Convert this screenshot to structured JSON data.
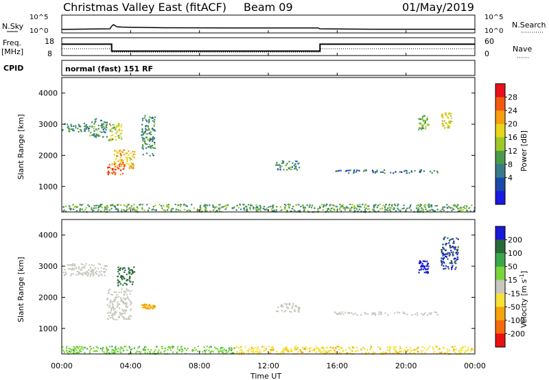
{
  "header": {
    "station": "Christmas Valley East (fitACF)",
    "beam": "Beam 09",
    "date": "01/May/2019"
  },
  "panels": {
    "nsky_label": "N.Sky",
    "nsky_ticks": [
      "10^5",
      "10^0"
    ],
    "nsearch_label": "N.Search",
    "nsearch_ticks": [
      "10^5",
      "10^0"
    ],
    "freq_label_1": "Freq.",
    "freq_label_2": "[MHz]",
    "freq_ticks": [
      "18",
      "8"
    ],
    "nave_label": "Nave",
    "nave_ticks": [
      "60",
      "0"
    ],
    "cpid_label": "CPID",
    "cpid_value": "normal (fast) 151 RF"
  },
  "axes": {
    "xlabel": "Time UT",
    "ylabel": "Slant Range [km]",
    "x_ticks": [
      "00:00",
      "04:00",
      "08:00",
      "12:00",
      "16:00",
      "20:00",
      "00:00"
    ],
    "y_ticks": [
      "1000",
      "2000",
      "3000",
      "4000"
    ]
  },
  "colorbars": {
    "power": {
      "label": "Power [dB]",
      "ticks": [
        "28",
        "24",
        "20",
        "16",
        "12",
        "8",
        "4"
      ],
      "colors": [
        "#e8101a",
        "#f25a10",
        "#f79d10",
        "#e8d61a",
        "#9dca2a",
        "#4a9a4a",
        "#3a7a8a",
        "#1a4aa8",
        "#1a1ae0"
      ]
    },
    "velocity": {
      "label_main": "Velocity [m s",
      "label_sup": "-1",
      "label_end": "]",
      "ticks": [
        "200",
        "100",
        "50",
        "15",
        "-15",
        "-50",
        "-100",
        "-200"
      ],
      "colors": [
        "#1a1ad8",
        "#2a6a3a",
        "#3aa84a",
        "#7ad43a",
        "#c8c8c0",
        "#f5e23a",
        "#f5a50a",
        "#f56a0a",
        "#e81010"
      ]
    }
  },
  "chart_data": [
    {
      "type": "line",
      "title": "Christmas Valley East (fitACF)",
      "ylabel": "N.Sky",
      "x_range_hours": [
        0,
        24
      ],
      "y_scale": "log",
      "series": [
        {
          "x": [
            0,
            2.8,
            2.9,
            3.0,
            3.2,
            3.5,
            4.0,
            6.0,
            10.0,
            14.9,
            15.0,
            18.0,
            24.0
          ],
          "y": [
            5,
            8,
            60,
            200,
            40,
            30,
            25,
            18,
            15,
            15,
            8,
            6,
            6
          ]
        }
      ]
    },
    {
      "type": "line",
      "ylabel": "Freq. [MHz]",
      "x_range_hours": [
        0,
        24
      ],
      "ylim": [
        8,
        18
      ],
      "series": [
        {
          "x": [
            0,
            2.9,
            2.9,
            15.0,
            15.0,
            24.0
          ],
          "y": [
            14.5,
            14.5,
            10.3,
            10.3,
            14.5,
            14.5
          ]
        }
      ]
    },
    {
      "type": "heatmap",
      "ylabel": "Slant Range [km]",
      "xlabel": "Time UT",
      "ylim": [
        180,
        4500
      ],
      "colorbar": "Power [dB]",
      "echo_regions": [
        {
          "t": [
            0.0,
            1.6
          ],
          "r": [
            2750,
            3050
          ],
          "value": 8
        },
        {
          "t": [
            1.6,
            2.6
          ],
          "r": [
            2600,
            3200
          ],
          "value": 8
        },
        {
          "t": [
            2.6,
            3.6
          ],
          "r": [
            1400,
            1800
          ],
          "value": 26
        },
        {
          "t": [
            3.0,
            4.2
          ],
          "r": [
            1600,
            2200
          ],
          "value": 20
        },
        {
          "t": [
            2.7,
            3.5
          ],
          "r": [
            2500,
            3100
          ],
          "value": 16
        },
        {
          "t": [
            4.6,
            5.4
          ],
          "r": [
            2000,
            3300
          ],
          "value": 8
        },
        {
          "t": [
            12.4,
            13.8
          ],
          "r": [
            1550,
            1850
          ],
          "value": 8
        },
        {
          "t": [
            15.8,
            21.8
          ],
          "r": [
            1450,
            1550
          ],
          "value": 6
        },
        {
          "t": [
            20.7,
            21.3
          ],
          "r": [
            2850,
            3300
          ],
          "value": 12
        },
        {
          "t": [
            22.0,
            22.6
          ],
          "r": [
            2900,
            3400
          ],
          "value": 18
        },
        {
          "t": [
            0.0,
            24.0
          ],
          "r": [
            200,
            450
          ],
          "value": 10
        }
      ]
    },
    {
      "type": "heatmap",
      "ylabel": "Slant Range [km]",
      "xlabel": "Time UT",
      "ylim": [
        180,
        4500
      ],
      "colorbar": "Velocity [m s-1]",
      "echo_regions": [
        {
          "t": [
            0.0,
            2.6
          ],
          "r": [
            2700,
            3100
          ],
          "value": 0
        },
        {
          "t": [
            2.6,
            4.0
          ],
          "r": [
            1300,
            2300
          ],
          "value": 0
        },
        {
          "t": [
            3.2,
            4.2
          ],
          "r": [
            2400,
            3000
          ],
          "value": 180
        },
        {
          "t": [
            4.6,
            5.4
          ],
          "r": [
            1650,
            1800
          ],
          "value": -60
        },
        {
          "t": [
            12.4,
            13.8
          ],
          "r": [
            1550,
            1850
          ],
          "value": 0
        },
        {
          "t": [
            15.8,
            21.8
          ],
          "r": [
            1450,
            1550
          ],
          "value": 0
        },
        {
          "t": [
            20.7,
            21.3
          ],
          "r": [
            2800,
            3200
          ],
          "value": 220
        },
        {
          "t": [
            22.0,
            23.0
          ],
          "r": [
            2900,
            4000
          ],
          "value": 200
        },
        {
          "t": [
            0.0,
            10.0
          ],
          "r": [
            200,
            450
          ],
          "value": 40
        },
        {
          "t": [
            10.0,
            24.0
          ],
          "r": [
            200,
            450
          ],
          "value": -40
        }
      ]
    }
  ]
}
